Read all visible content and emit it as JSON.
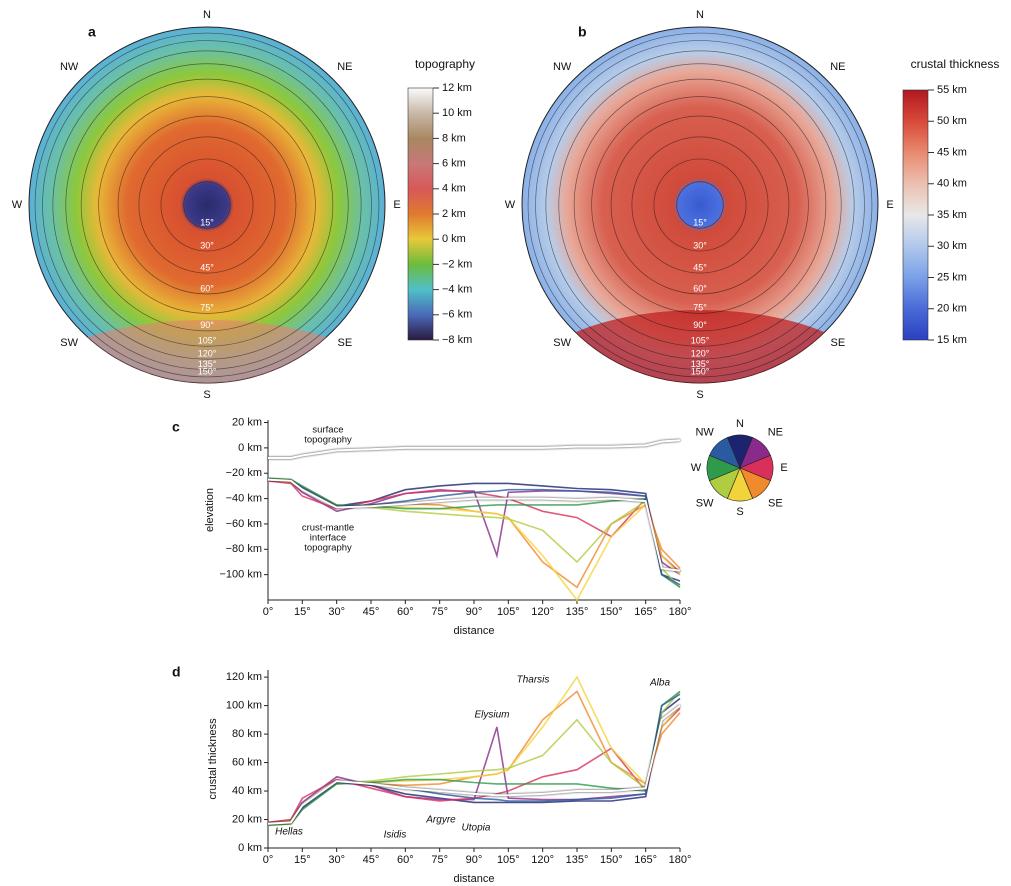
{
  "chart_data": [
    {
      "type": "map",
      "panel": "a",
      "title": "topography",
      "compass": [
        "N",
        "NE",
        "E",
        "SE",
        "S",
        "SW",
        "W",
        "NW"
      ],
      "rings": [
        {
          "value": 15,
          "label": "15°"
        },
        {
          "value": 30,
          "label": "30°"
        },
        {
          "value": 45,
          "label": "45°"
        },
        {
          "value": 60,
          "label": "60°"
        },
        {
          "value": 75,
          "label": "75°"
        },
        {
          "value": 90,
          "label": "90°"
        },
        {
          "value": 105,
          "label": "105°"
        },
        {
          "value": 120,
          "label": "120°"
        },
        {
          "value": 135,
          "label": "135°"
        },
        {
          "value": 150,
          "label": "150°"
        }
      ],
      "colorbar": {
        "colors": [
          "#fafafa",
          "#c8b8a8",
          "#a88860",
          "#c87878",
          "#d85858",
          "#e07a30",
          "#e8c838",
          "#6cbc3c",
          "#50c0c8",
          "#4a6ab8",
          "#2a1a40"
        ],
        "ylim": [
          -8,
          12
        ],
        "yticks": [
          {
            "value": 12,
            "label": "12 km"
          },
          {
            "value": 10,
            "label": "10 km"
          },
          {
            "value": 8,
            "label": "8 km"
          },
          {
            "value": 6,
            "label": "6 km"
          },
          {
            "value": 4,
            "label": "4 km"
          },
          {
            "value": 2,
            "label": "2 km"
          },
          {
            "value": 0,
            "label": "0 km"
          },
          {
            "value": -2,
            "label": "−2 km"
          },
          {
            "value": -4,
            "label": "−4 km"
          },
          {
            "value": -6,
            "label": "−6 km"
          },
          {
            "value": -8,
            "label": "−8 km"
          }
        ]
      }
    },
    {
      "type": "map",
      "panel": "b",
      "title": "crustal thickness",
      "compass": [
        "N",
        "NE",
        "E",
        "SE",
        "S",
        "SW",
        "W",
        "NW"
      ],
      "rings": [
        {
          "value": 15,
          "label": "15°"
        },
        {
          "value": 30,
          "label": "30°"
        },
        {
          "value": 45,
          "label": "45°"
        },
        {
          "value": 60,
          "label": "60°"
        },
        {
          "value": 75,
          "label": "75°"
        },
        {
          "value": 90,
          "label": "90°"
        },
        {
          "value": 105,
          "label": "105°"
        },
        {
          "value": 120,
          "label": "120°"
        },
        {
          "value": 135,
          "label": "135°"
        },
        {
          "value": 150,
          "label": "150°"
        }
      ],
      "colorbar": {
        "colors": [
          "#b01820",
          "#d84a3a",
          "#e88a70",
          "#ecc0b0",
          "#e8e8e8",
          "#b0c8ec",
          "#7aa0e8",
          "#4a6ad8",
          "#2a40c0"
        ],
        "ylim": [
          15,
          55
        ],
        "yticks": [
          {
            "value": 55,
            "label": "55 km"
          },
          {
            "value": 50,
            "label": "50 km"
          },
          {
            "value": 45,
            "label": "45 km"
          },
          {
            "value": 40,
            "label": "40 km"
          },
          {
            "value": 35,
            "label": "35 km"
          },
          {
            "value": 30,
            "label": "30 km"
          },
          {
            "value": 25,
            "label": "25 km"
          },
          {
            "value": 20,
            "label": "20 km"
          },
          {
            "value": 15,
            "label": "15 km"
          }
        ]
      }
    },
    {
      "type": "line",
      "panel": "c",
      "ylabel": "elevation",
      "xlabel": "distance",
      "annotations": [
        [
          "surface",
          "topography"
        ],
        [
          "crust-mantle",
          "interface",
          "topography"
        ]
      ],
      "xlim": [
        0,
        180
      ],
      "ylim": [
        -120,
        22
      ],
      "xticks": [
        {
          "value": 0,
          "label": "0°"
        },
        {
          "value": 15,
          "label": "15°"
        },
        {
          "value": 30,
          "label": "30°"
        },
        {
          "value": 45,
          "label": "45°"
        },
        {
          "value": 60,
          "label": "60°"
        },
        {
          "value": 75,
          "label": "75°"
        },
        {
          "value": 90,
          "label": "90°"
        },
        {
          "value": 105,
          "label": "105°"
        },
        {
          "value": 120,
          "label": "120°"
        },
        {
          "value": 135,
          "label": "135°"
        },
        {
          "value": 150,
          "label": "150°"
        },
        {
          "value": 165,
          "label": "165°"
        },
        {
          "value": 180,
          "label": "180°"
        }
      ],
      "yticks": [
        {
          "value": 20,
          "label": "20 km"
        },
        {
          "value": 0,
          "label": "0 km"
        },
        {
          "value": -20,
          "label": "−20 km"
        },
        {
          "value": -40,
          "label": "−40 km"
        },
        {
          "value": -60,
          "label": "−60 km"
        },
        {
          "value": -80,
          "label": "−80 km"
        },
        {
          "value": -100,
          "label": "−100 km"
        }
      ],
      "x": [
        0,
        10,
        15,
        30,
        45,
        60,
        75,
        90,
        100,
        105,
        120,
        135,
        150,
        165,
        172,
        180
      ],
      "series": [
        {
          "color": "#ffffff",
          "values": [
            -8,
            -8,
            -6,
            -2,
            -1,
            0,
            0,
            0,
            0,
            0,
            0,
            1,
            1,
            2,
            5,
            6
          ]
        },
        {
          "color": "#ffffff",
          "values": [
            -25,
            -26,
            -33,
            -47,
            -46,
            -44,
            -42,
            -40,
            -40,
            -40,
            -40,
            -41,
            -40,
            -42,
            -95,
            -97
          ]
        },
        {
          "name": "N",
          "color": "#1c2470",
          "values": [
            -25,
            -26,
            -32,
            -46,
            -42,
            -33,
            -30,
            -28,
            -28,
            -28,
            -30,
            -32,
            -33,
            -36,
            -100,
            -105
          ]
        },
        {
          "name": "NE",
          "color": "#8a2a8a",
          "values": [
            -26,
            -27,
            -35,
            -50,
            -44,
            -36,
            -34,
            -34,
            -85,
            -35,
            -34,
            -34,
            -36,
            -38,
            -90,
            -100
          ]
        },
        {
          "name": "E",
          "color": "#d8305a",
          "values": [
            -26,
            -28,
            -38,
            -48,
            -42,
            -36,
            -33,
            -35,
            -38,
            -40,
            -50,
            -55,
            -70,
            -40,
            -85,
            -98
          ]
        },
        {
          "name": "SE",
          "color": "#f08a2a",
          "values": [
            -25,
            -27,
            -33,
            -47,
            -45,
            -44,
            -45,
            -50,
            -52,
            -55,
            -90,
            -110,
            -60,
            -45,
            -80,
            -95
          ]
        },
        {
          "name": "S",
          "color": "#f2d43a",
          "values": [
            -25,
            -26,
            -32,
            -46,
            -46,
            -47,
            -48,
            -50,
            -52,
            -55,
            -85,
            -120,
            -70,
            -45,
            -85,
            -100
          ]
        },
        {
          "name": "SW",
          "color": "#b0cc40",
          "values": [
            -24,
            -25,
            -31,
            -45,
            -47,
            -50,
            -52,
            -54,
            -55,
            -56,
            -65,
            -90,
            -60,
            -42,
            -95,
            -110
          ]
        },
        {
          "name": "W",
          "color": "#2e9a4a",
          "values": [
            -24,
            -25,
            -30,
            -45,
            -46,
            -48,
            -48,
            -46,
            -45,
            -45,
            -45,
            -45,
            -42,
            -40,
            -100,
            -110
          ]
        },
        {
          "name": "NW",
          "color": "#2a5aa0",
          "values": [
            -25,
            -26,
            -31,
            -46,
            -45,
            -42,
            -38,
            -35,
            -34,
            -33,
            -33,
            -34,
            -35,
            -38,
            -100,
            -108
          ]
        }
      ]
    },
    {
      "type": "line",
      "panel": "d",
      "ylabel": "crustal thickness",
      "xlabel": "distance",
      "annotations": [
        "Hellas",
        "Isidis",
        "Argyre",
        "Utopia",
        "Elysium",
        "Tharsis",
        "Alba"
      ],
      "xlim": [
        0,
        180
      ],
      "ylim": [
        0,
        125
      ],
      "xticks": [
        {
          "value": 0,
          "label": "0°"
        },
        {
          "value": 15,
          "label": "15°"
        },
        {
          "value": 30,
          "label": "30°"
        },
        {
          "value": 45,
          "label": "45°"
        },
        {
          "value": 60,
          "label": "60°"
        },
        {
          "value": 75,
          "label": "75°"
        },
        {
          "value": 90,
          "label": "90°"
        },
        {
          "value": 105,
          "label": "105°"
        },
        {
          "value": 120,
          "label": "120°"
        },
        {
          "value": 135,
          "label": "135°"
        },
        {
          "value": 150,
          "label": "150°"
        },
        {
          "value": 165,
          "label": "165°"
        },
        {
          "value": 180,
          "label": "180°"
        }
      ],
      "yticks": [
        {
          "value": 120,
          "label": "120 km"
        },
        {
          "value": 100,
          "label": "100 km"
        },
        {
          "value": 80,
          "label": "80 km"
        },
        {
          "value": 60,
          "label": "60 km"
        },
        {
          "value": 40,
          "label": "40 km"
        },
        {
          "value": 20,
          "label": "20 km"
        },
        {
          "value": 0,
          "label": "0 km"
        }
      ],
      "x": [
        0,
        10,
        15,
        30,
        45,
        60,
        75,
        90,
        100,
        105,
        120,
        135,
        150,
        165,
        172,
        180
      ],
      "series": [
        {
          "color": "#1c2470",
          "values": [
            17,
            18,
            28,
            46,
            44,
            38,
            35,
            32,
            32,
            32,
            32,
            33,
            33,
            36,
            95,
            105
          ]
        },
        {
          "color": "#8a2a8a",
          "values": [
            18,
            19,
            32,
            50,
            44,
            36,
            34,
            34,
            85,
            35,
            34,
            34,
            36,
            38,
            90,
            100
          ]
        },
        {
          "color": "#d8305a",
          "values": [
            18,
            20,
            35,
            48,
            42,
            36,
            33,
            35,
            38,
            40,
            50,
            55,
            70,
            40,
            85,
            98
          ]
        },
        {
          "color": "#f08a2a",
          "values": [
            17,
            19,
            30,
            47,
            45,
            44,
            45,
            50,
            52,
            55,
            90,
            110,
            60,
            45,
            80,
            95
          ]
        },
        {
          "color": "#f2d43a",
          "values": [
            17,
            18,
            29,
            46,
            46,
            47,
            48,
            50,
            52,
            55,
            85,
            120,
            70,
            45,
            85,
            100
          ]
        },
        {
          "color": "#b0cc40",
          "values": [
            16,
            17,
            28,
            45,
            47,
            50,
            52,
            54,
            55,
            56,
            65,
            90,
            60,
            42,
            95,
            110
          ]
        },
        {
          "color": "#2e9a4a",
          "values": [
            16,
            17,
            27,
            45,
            46,
            48,
            48,
            46,
            45,
            45,
            45,
            45,
            42,
            40,
            100,
            110
          ]
        },
        {
          "color": "#2a5aa0",
          "values": [
            17,
            18,
            28,
            46,
            45,
            42,
            38,
            35,
            34,
            33,
            33,
            34,
            35,
            38,
            100,
            108
          ]
        },
        {
          "color": "#ffffff",
          "values": [
            17,
            18,
            30,
            47,
            45,
            42,
            40,
            38,
            37,
            37,
            38,
            40,
            40,
            42,
            90,
            100
          ]
        }
      ]
    }
  ]
}
